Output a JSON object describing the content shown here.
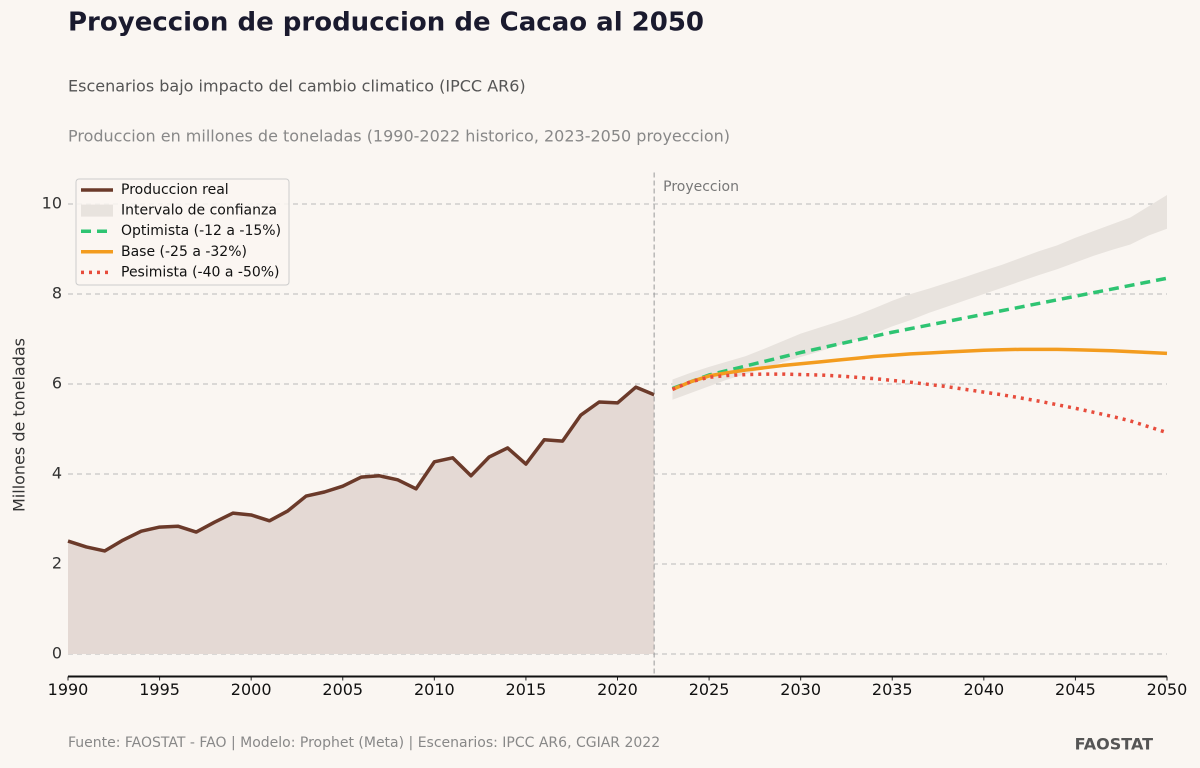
{
  "chart_data": {
    "type": "line",
    "title": "Proyeccion de produccion de Cacao al 2050",
    "subtitle": "Escenarios bajo impacto del cambio climatico (IPCC AR6)",
    "note": "Produccion en millones de toneladas (1990-2022 historico, 2023-2050 proyeccion)",
    "ylabel": "Millones de toneladas",
    "annotation": "Proyeccion",
    "divider_x": 2022,
    "source": "Fuente: FAOSTAT - FAO | Modelo: Prophet (Meta) | Escenarios: IPCC AR6, CGIAR 2022",
    "brand": "FAOSTAT",
    "xlim": [
      1990,
      2050
    ],
    "xticks": [
      1990,
      1995,
      2000,
      2005,
      2010,
      2015,
      2020,
      2025,
      2030,
      2035,
      2040,
      2045,
      2050
    ],
    "ylim": [
      -0.5,
      10.7
    ],
    "yticks": [
      0,
      2,
      4,
      6,
      8,
      10
    ],
    "grid": true,
    "legend": "upper left",
    "series": [
      {
        "name": "Produccion real",
        "type": "line",
        "color": "#6b3a2a",
        "fill": "#e4d9d4",
        "dash": "solid",
        "x": [
          1990,
          1991,
          1992,
          1993,
          1994,
          1995,
          1996,
          1997,
          1998,
          1999,
          2000,
          2001,
          2002,
          2003,
          2004,
          2005,
          2006,
          2007,
          2008,
          2009,
          2010,
          2011,
          2012,
          2013,
          2014,
          2015,
          2016,
          2017,
          2018,
          2019,
          2020,
          2021,
          2022
        ],
        "values": [
          2.51,
          2.38,
          2.29,
          2.53,
          2.73,
          2.82,
          2.84,
          2.71,
          2.93,
          3.13,
          3.09,
          2.96,
          3.18,
          3.51,
          3.6,
          3.73,
          3.93,
          3.96,
          3.87,
          3.67,
          4.27,
          4.36,
          3.96,
          4.38,
          4.58,
          4.22,
          4.76,
          4.73,
          5.31,
          5.6,
          5.58,
          5.93,
          5.76
        ]
      },
      {
        "name": "Intervalo de confianza",
        "type": "band",
        "color": "#e8e3de",
        "x": [
          2023,
          2024,
          2025,
          2026,
          2027,
          2028,
          2029,
          2030,
          2031,
          2032,
          2033,
          2034,
          2035,
          2036,
          2037,
          2038,
          2039,
          2040,
          2041,
          2042,
          2043,
          2044,
          2045,
          2046,
          2047,
          2048,
          2049,
          2050
        ],
        "upper": [
          6.1,
          6.25,
          6.38,
          6.5,
          6.62,
          6.78,
          6.95,
          7.12,
          7.25,
          7.38,
          7.52,
          7.68,
          7.85,
          8.0,
          8.12,
          8.25,
          8.38,
          8.52,
          8.65,
          8.8,
          8.95,
          9.08,
          9.25,
          9.4,
          9.55,
          9.7,
          9.95,
          10.2
        ],
        "lower": [
          5.65,
          5.8,
          5.95,
          6.1,
          6.22,
          6.35,
          6.48,
          6.6,
          6.72,
          6.85,
          6.98,
          7.12,
          7.28,
          7.42,
          7.58,
          7.72,
          7.86,
          8.0,
          8.14,
          8.28,
          8.42,
          8.55,
          8.7,
          8.85,
          8.98,
          9.1,
          9.3,
          9.45
        ]
      },
      {
        "name": "Optimista (-12 a -15%)",
        "type": "line",
        "color": "#2ec472",
        "dash": "dashed",
        "x": [
          2023,
          2024,
          2025,
          2026,
          2027,
          2028,
          2029,
          2030,
          2031,
          2032,
          2033,
          2034,
          2035,
          2036,
          2037,
          2038,
          2039,
          2040,
          2041,
          2042,
          2043,
          2044,
          2045,
          2046,
          2047,
          2048,
          2049,
          2050
        ],
        "values": [
          5.9,
          6.05,
          6.2,
          6.3,
          6.4,
          6.5,
          6.6,
          6.7,
          6.79,
          6.88,
          6.97,
          7.06,
          7.15,
          7.23,
          7.31,
          7.39,
          7.47,
          7.55,
          7.63,
          7.71,
          7.79,
          7.87,
          7.95,
          8.03,
          8.11,
          8.19,
          8.27,
          8.35
        ]
      },
      {
        "name": "Base (-25 a -32%)",
        "type": "line",
        "color": "#f39c1f",
        "dash": "solid",
        "x": [
          2023,
          2024,
          2025,
          2026,
          2027,
          2028,
          2029,
          2030,
          2031,
          2032,
          2033,
          2034,
          2035,
          2036,
          2037,
          2038,
          2039,
          2040,
          2041,
          2042,
          2043,
          2044,
          2045,
          2046,
          2047,
          2048,
          2049,
          2050
        ],
        "values": [
          5.88,
          6.05,
          6.18,
          6.25,
          6.31,
          6.36,
          6.41,
          6.45,
          6.49,
          6.53,
          6.57,
          6.61,
          6.64,
          6.67,
          6.69,
          6.71,
          6.73,
          6.75,
          6.76,
          6.77,
          6.77,
          6.77,
          6.76,
          6.75,
          6.74,
          6.72,
          6.7,
          6.68
        ]
      },
      {
        "name": "Pesimista (-40 a -50%)",
        "type": "line",
        "color": "#e74c3c",
        "dash": "dotted",
        "x": [
          2023,
          2024,
          2025,
          2026,
          2027,
          2028,
          2029,
          2030,
          2031,
          2032,
          2033,
          2034,
          2035,
          2036,
          2037,
          2038,
          2039,
          2040,
          2041,
          2042,
          2043,
          2044,
          2045,
          2046,
          2047,
          2048,
          2049,
          2050
        ],
        "values": [
          5.88,
          6.05,
          6.15,
          6.19,
          6.21,
          6.22,
          6.22,
          6.21,
          6.2,
          6.18,
          6.15,
          6.12,
          6.08,
          6.04,
          5.99,
          5.94,
          5.88,
          5.82,
          5.76,
          5.69,
          5.62,
          5.54,
          5.46,
          5.37,
          5.28,
          5.18,
          5.05,
          4.92
        ]
      }
    ]
  }
}
